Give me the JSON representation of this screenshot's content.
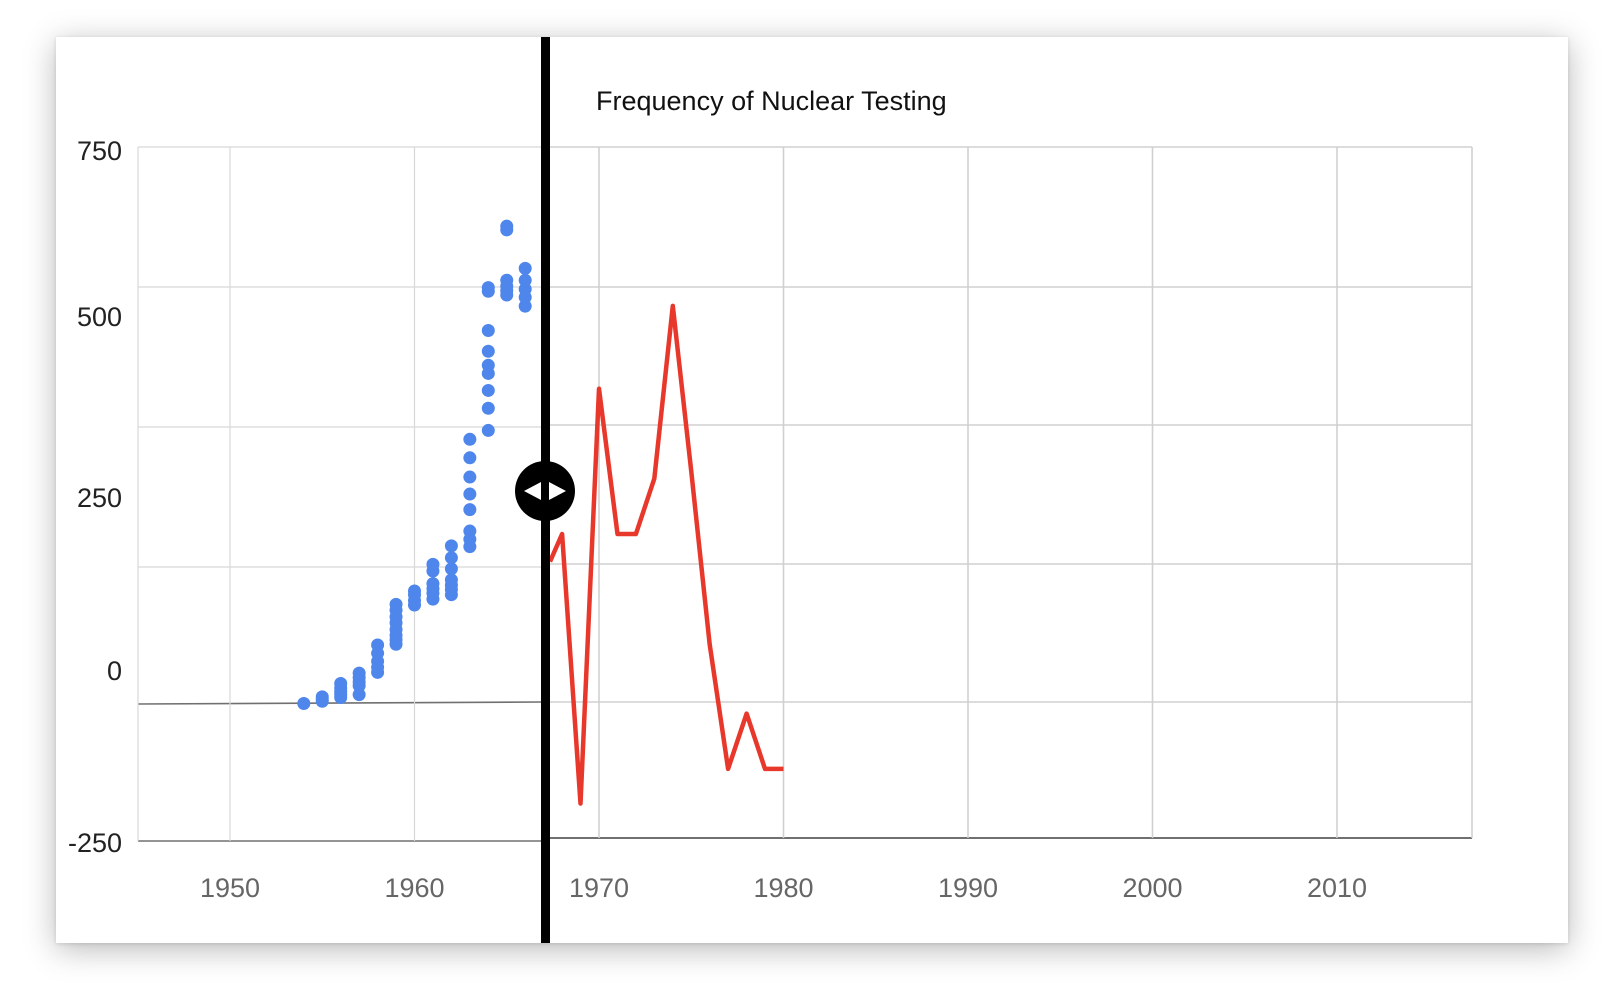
{
  "chart_data": [
    {
      "panel": "left",
      "type": "scatter",
      "title": "",
      "yticks": [
        "750",
        "500",
        "250",
        "0",
        "-250"
      ],
      "xticks": [
        "1950",
        "1960"
      ],
      "ylim": [
        -250,
        750
      ],
      "xlim": [
        1945,
        2017
      ],
      "grid": true,
      "color": "#4f86ec",
      "points": [
        [
          1954,
          -2
        ],
        [
          1955,
          1
        ],
        [
          1955,
          4
        ],
        [
          1955,
          7
        ],
        [
          1956,
          6
        ],
        [
          1956,
          10
        ],
        [
          1956,
          14
        ],
        [
          1956,
          19
        ],
        [
          1956,
          25
        ],
        [
          1957,
          10
        ],
        [
          1957,
          22
        ],
        [
          1957,
          27
        ],
        [
          1957,
          33
        ],
        [
          1957,
          39
        ],
        [
          1958,
          40
        ],
        [
          1958,
          47
        ],
        [
          1958,
          55
        ],
        [
          1958,
          66
        ],
        [
          1958,
          77
        ],
        [
          1959,
          78
        ],
        [
          1959,
          84
        ],
        [
          1959,
          90
        ],
        [
          1959,
          98
        ],
        [
          1959,
          107
        ],
        [
          1959,
          115
        ],
        [
          1959,
          124
        ],
        [
          1959,
          132
        ],
        [
          1960,
          131
        ],
        [
          1960,
          137
        ],
        [
          1960,
          145
        ],
        [
          1960,
          150
        ],
        [
          1961,
          139
        ],
        [
          1961,
          147
        ],
        [
          1961,
          153
        ],
        [
          1961,
          160
        ],
        [
          1961,
          177
        ],
        [
          1961,
          186
        ],
        [
          1962,
          145
        ],
        [
          1962,
          152
        ],
        [
          1962,
          158
        ],
        [
          1962,
          165
        ],
        [
          1962,
          180
        ],
        [
          1962,
          195
        ],
        [
          1962,
          211
        ],
        [
          1963,
          210
        ],
        [
          1963,
          220
        ],
        [
          1963,
          231
        ],
        [
          1963,
          260
        ],
        [
          1963,
          281
        ],
        [
          1963,
          304
        ],
        [
          1963,
          330
        ],
        [
          1963,
          355
        ],
        [
          1964,
          367
        ],
        [
          1964,
          397
        ],
        [
          1964,
          421
        ],
        [
          1964,
          444
        ],
        [
          1964,
          455
        ],
        [
          1964,
          474
        ],
        [
          1964,
          502
        ],
        [
          1964,
          555
        ],
        [
          1964,
          560
        ],
        [
          1965,
          550
        ],
        [
          1965,
          556
        ],
        [
          1965,
          562
        ],
        [
          1965,
          570
        ],
        [
          1965,
          638
        ],
        [
          1965,
          643
        ],
        [
          1966,
          535
        ],
        [
          1966,
          547
        ],
        [
          1966,
          558
        ],
        [
          1966,
          570
        ],
        [
          1966,
          586
        ],
        [
          1967,
          520
        ],
        [
          1967,
          532
        ],
        [
          1967,
          545
        ],
        [
          1967,
          556
        ]
      ]
    },
    {
      "panel": "right",
      "type": "line",
      "title": "Frequency of Nuclear Testing",
      "xticks": [
        "1970",
        "1980",
        "1990",
        "2000",
        "2010"
      ],
      "xlim": [
        1945,
        2017
      ],
      "ylim": [
        0,
        100
      ],
      "grid": true,
      "color": "#e8382b",
      "x": [
        1967,
        1968,
        1969,
        1970,
        1971,
        1972,
        1973,
        1974,
        1975,
        1976,
        1977,
        1978,
        1979,
        1980
      ],
      "y": [
        40,
        44,
        5,
        65,
        44,
        44,
        52,
        77,
        53,
        28,
        10,
        18,
        10,
        10
      ]
    }
  ]
}
